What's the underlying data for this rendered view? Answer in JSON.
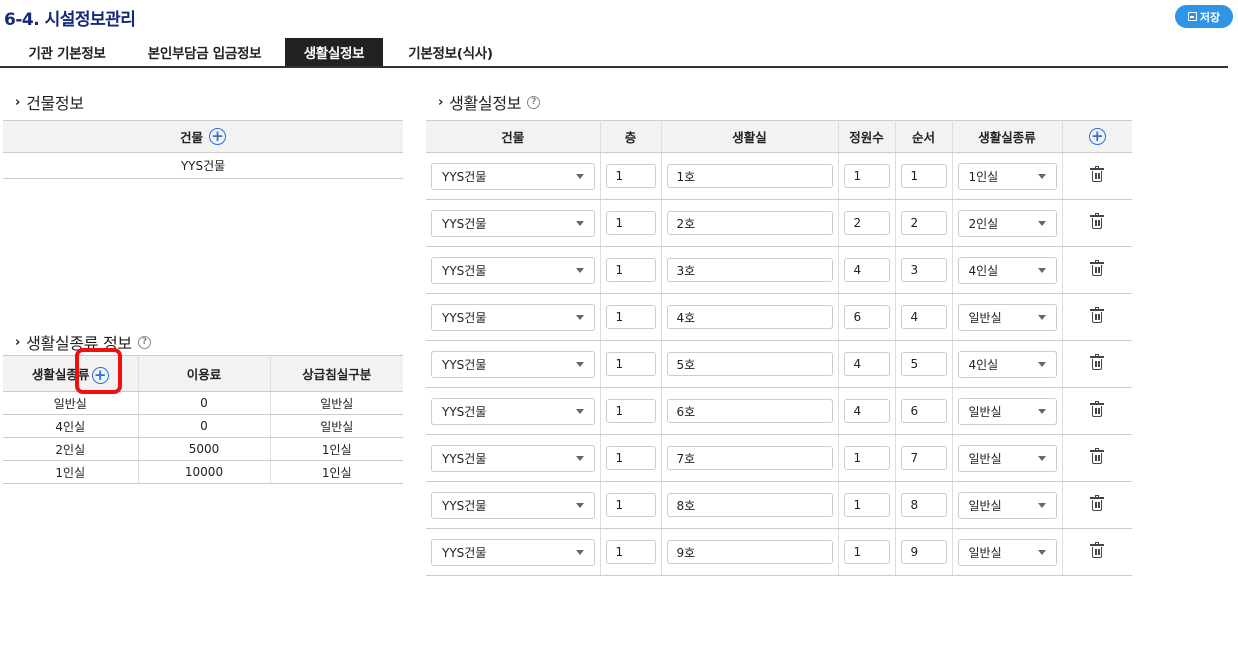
{
  "page": {
    "title": "6-4. 시설정보관리",
    "save_label": "저장"
  },
  "tabs": [
    "기관 기본정보",
    "본인부담금 입금정보",
    "생활실정보",
    "기본정보(식사)"
  ],
  "building_section": {
    "title": "건물정보",
    "header": "건물",
    "rows": [
      "YYS건물"
    ]
  },
  "room_type_section": {
    "title": "생활실종류 정보",
    "headers": [
      "생활실종류",
      "이용료",
      "상급침실구분"
    ],
    "rows": [
      [
        "일반실",
        "0",
        "일반실"
      ],
      [
        "4인실",
        "0",
        "일반실"
      ],
      [
        "2인실",
        "5000",
        "1인실"
      ],
      [
        "1인실",
        "10000",
        "1인실"
      ]
    ]
  },
  "room_section": {
    "title": "생활실정보",
    "headers": [
      "건물",
      "층",
      "생활실",
      "정원수",
      "순서",
      "생활실종류"
    ],
    "rows": [
      {
        "building": "YYS건물",
        "floor": "1",
        "room": "1호",
        "capacity": "1",
        "order": "1",
        "type": "1인실"
      },
      {
        "building": "YYS건물",
        "floor": "1",
        "room": "2호",
        "capacity": "2",
        "order": "2",
        "type": "2인실"
      },
      {
        "building": "YYS건물",
        "floor": "1",
        "room": "3호",
        "capacity": "4",
        "order": "3",
        "type": "4인실"
      },
      {
        "building": "YYS건물",
        "floor": "1",
        "room": "4호",
        "capacity": "6",
        "order": "4",
        "type": "일반실"
      },
      {
        "building": "YYS건물",
        "floor": "1",
        "room": "5호",
        "capacity": "4",
        "order": "5",
        "type": "4인실"
      },
      {
        "building": "YYS건물",
        "floor": "1",
        "room": "6호",
        "capacity": "4",
        "order": "6",
        "type": "일반실"
      },
      {
        "building": "YYS건물",
        "floor": "1",
        "room": "7호",
        "capacity": "1",
        "order": "7",
        "type": "일반실"
      },
      {
        "building": "YYS건물",
        "floor": "1",
        "room": "8호",
        "capacity": "1",
        "order": "8",
        "type": "일반실"
      },
      {
        "building": "YYS건물",
        "floor": "1",
        "room": "9호",
        "capacity": "1",
        "order": "9",
        "type": "일반실"
      }
    ]
  },
  "colors": {
    "title": "#14287a",
    "accent": "#2f93e6",
    "highlight": "#ee1111",
    "plus": "#2f6fe0"
  },
  "icons": {
    "save": "save-icon",
    "add": "plus-circle-icon",
    "help": "help-circle-icon",
    "delete": "trash-icon",
    "dropdown": "caret-down-icon"
  }
}
